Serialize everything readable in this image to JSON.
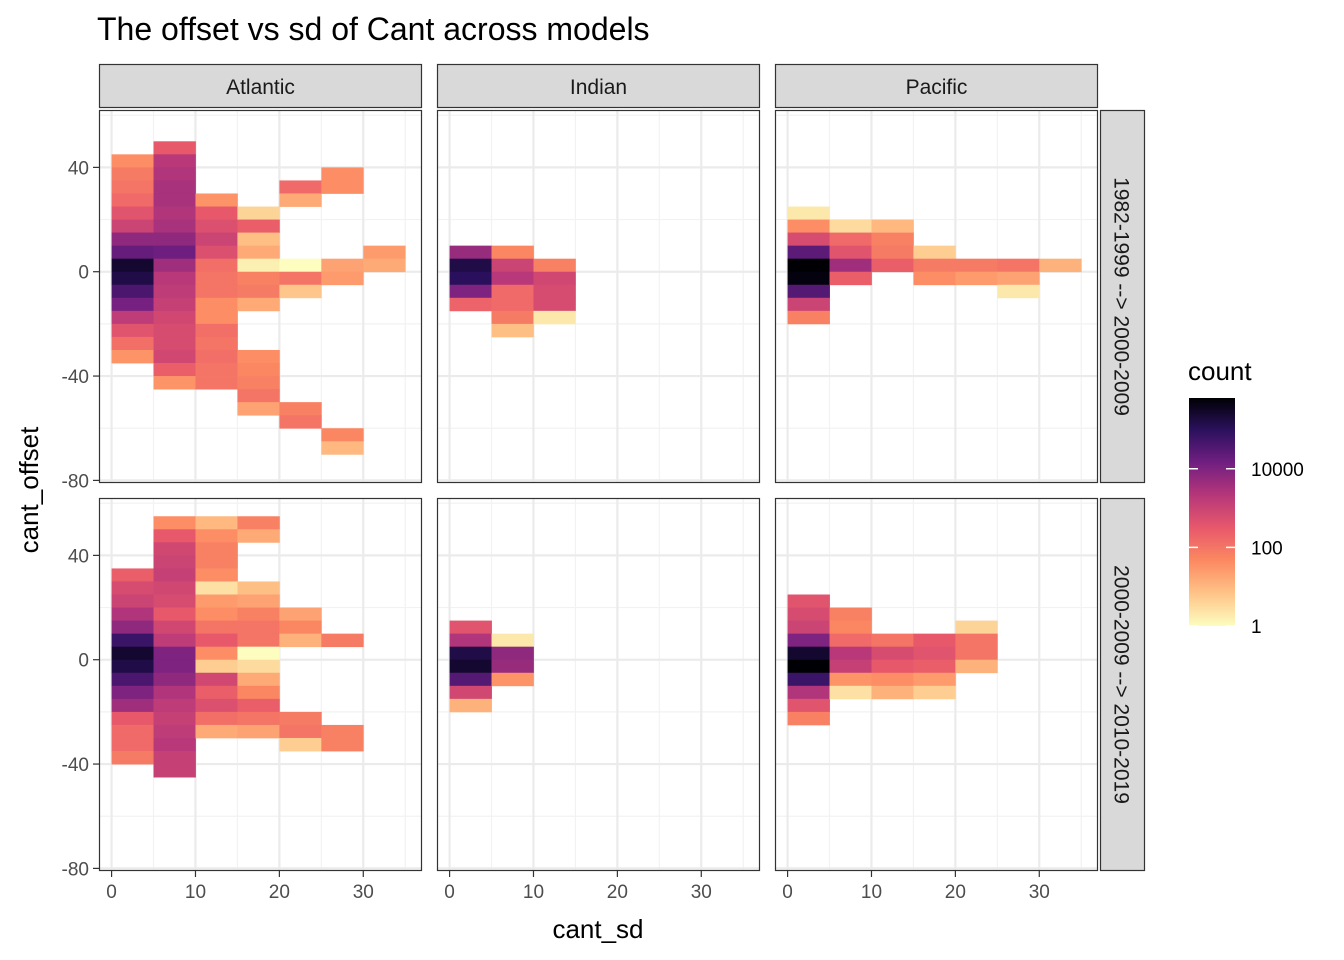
{
  "chart_data": {
    "type": "heatmap",
    "title": "The offset vs sd of Cant across models",
    "xlabel": "cant_sd",
    "ylabel": "cant_offset",
    "xlim": [
      -1.5,
      37
    ],
    "ylim": [
      -81,
      62
    ],
    "x_ticks": [
      0,
      10,
      20,
      30
    ],
    "y_ticks": [
      -80,
      -40,
      0,
      40
    ],
    "x_tick_labels": [
      "0",
      "10",
      "20",
      "30"
    ],
    "y_tick_labels": [
      "-80",
      "-40",
      "0",
      "40"
    ],
    "bin_width_x": 5,
    "bin_width_y": 5,
    "facet_columns": [
      "Atlantic",
      "Indian",
      "Pacific"
    ],
    "facet_rows": [
      "1982-1999 --> 2000-2009",
      "2000-2009 --> 2010-2019"
    ],
    "legend": {
      "title": "count",
      "scale": "log10",
      "breaks": [
        1,
        100,
        10000
      ],
      "break_labels": [
        "1",
        "100",
        "10000"
      ],
      "max_log10": 5.8,
      "palette": [
        "#fcfdbf",
        "#fec488",
        "#fc8961",
        "#e8596b",
        "#b73779",
        "#721f81",
        "#2c115f",
        "#000004"
      ],
      "position": "right"
    },
    "grid": true,
    "panels": [
      {
        "row": 0,
        "col": 0,
        "ocean": "Atlantic",
        "period": "1982-1999 --> 2000-2009",
        "cells": [
          [
            0,
            40,
            1.6
          ],
          [
            0,
            35,
            1.9
          ],
          [
            0,
            30,
            2.0
          ],
          [
            0,
            25,
            2.2
          ],
          [
            0,
            20,
            2.6
          ],
          [
            0,
            15,
            3.0
          ],
          [
            0,
            10,
            3.8
          ],
          [
            0,
            5,
            4.3
          ],
          [
            0,
            0,
            5.4
          ],
          [
            0,
            -5,
            5.2
          ],
          [
            0,
            -10,
            4.6
          ],
          [
            0,
            -15,
            4.1
          ],
          [
            0,
            -20,
            3.2
          ],
          [
            0,
            -25,
            2.6
          ],
          [
            0,
            -30,
            2.1
          ],
          [
            0,
            -35,
            1.5
          ],
          [
            5,
            45,
            2.5
          ],
          [
            5,
            40,
            3.3
          ],
          [
            5,
            35,
            3.4
          ],
          [
            5,
            30,
            3.5
          ],
          [
            5,
            25,
            3.5
          ],
          [
            5,
            20,
            3.4
          ],
          [
            5,
            15,
            3.5
          ],
          [
            5,
            10,
            3.8
          ],
          [
            5,
            5,
            4.2
          ],
          [
            5,
            0,
            3.6
          ],
          [
            5,
            -5,
            3.3
          ],
          [
            5,
            -10,
            3.2
          ],
          [
            5,
            -15,
            3.1
          ],
          [
            5,
            -20,
            2.9
          ],
          [
            5,
            -25,
            2.8
          ],
          [
            5,
            -30,
            2.8
          ],
          [
            5,
            -35,
            2.9
          ],
          [
            5,
            -40,
            2.4
          ],
          [
            5,
            -45,
            1.5
          ],
          [
            10,
            25,
            1.5
          ],
          [
            10,
            20,
            2.5
          ],
          [
            10,
            15,
            2.7
          ],
          [
            10,
            10,
            3.0
          ],
          [
            10,
            5,
            2.7
          ],
          [
            10,
            0,
            2.1
          ],
          [
            10,
            -5,
            2.0
          ],
          [
            10,
            -10,
            2.0
          ],
          [
            10,
            -15,
            1.6
          ],
          [
            10,
            -20,
            1.6
          ],
          [
            10,
            -25,
            2.1
          ],
          [
            10,
            -30,
            2.0
          ],
          [
            10,
            -35,
            2.1
          ],
          [
            10,
            -40,
            2.0
          ],
          [
            10,
            -45,
            2.0
          ],
          [
            15,
            20,
            0.6
          ],
          [
            15,
            15,
            2.4
          ],
          [
            15,
            10,
            0.9
          ],
          [
            15,
            5,
            1.2
          ],
          [
            15,
            0,
            0.2
          ],
          [
            15,
            -5,
            1.8
          ],
          [
            15,
            -10,
            1.9
          ],
          [
            15,
            -15,
            1.2
          ],
          [
            15,
            -35,
            1.6
          ],
          [
            15,
            -40,
            1.7
          ],
          [
            15,
            -45,
            1.8
          ],
          [
            15,
            -50,
            2.0
          ],
          [
            15,
            -55,
            1.3
          ],
          [
            20,
            30,
            2.2
          ],
          [
            20,
            25,
            1.2
          ],
          [
            20,
            0,
            0.0
          ],
          [
            20,
            -5,
            2.0
          ],
          [
            20,
            -10,
            0.8
          ],
          [
            20,
            -55,
            1.8
          ],
          [
            20,
            -60,
            2.0
          ],
          [
            25,
            35,
            1.6
          ],
          [
            25,
            30,
            1.6
          ],
          [
            25,
            0,
            1.3
          ],
          [
            25,
            -5,
            1.4
          ],
          [
            25,
            -65,
            1.7
          ],
          [
            25,
            -70,
            1.0
          ],
          [
            30,
            5,
            1.4
          ],
          [
            30,
            0,
            1.2
          ]
        ]
      },
      {
        "row": 0,
        "col": 1,
        "ocean": "Indian",
        "period": "1982-1999 --> 2000-2009",
        "cells": [
          [
            0,
            5,
            3.7
          ],
          [
            0,
            0,
            5.2
          ],
          [
            0,
            -5,
            5.0
          ],
          [
            0,
            -10,
            4.0
          ],
          [
            0,
            -15,
            2.3
          ],
          [
            5,
            5,
            1.7
          ],
          [
            5,
            0,
            3.0
          ],
          [
            5,
            -5,
            3.3
          ],
          [
            5,
            -10,
            2.2
          ],
          [
            5,
            -15,
            2.2
          ],
          [
            5,
            -20,
            1.9
          ],
          [
            5,
            -25,
            0.9
          ],
          [
            10,
            0,
            1.8
          ],
          [
            10,
            -5,
            2.9
          ],
          [
            10,
            -10,
            2.8
          ],
          [
            10,
            -15,
            2.8
          ],
          [
            10,
            -20,
            0.3
          ]
        ]
      },
      {
        "row": 0,
        "col": 2,
        "ocean": "Pacific",
        "period": "1982-1999 --> 2000-2009",
        "cells": [
          [
            0,
            20,
            0.3
          ],
          [
            0,
            15,
            1.6
          ],
          [
            0,
            10,
            2.8
          ],
          [
            0,
            5,
            4.4
          ],
          [
            0,
            0,
            5.8
          ],
          [
            0,
            -5,
            5.7
          ],
          [
            0,
            -10,
            4.5
          ],
          [
            0,
            -15,
            3.0
          ],
          [
            0,
            -20,
            1.8
          ],
          [
            5,
            15,
            0.5
          ],
          [
            5,
            10,
            2.2
          ],
          [
            5,
            5,
            2.6
          ],
          [
            5,
            0,
            3.6
          ],
          [
            5,
            -5,
            2.4
          ],
          [
            10,
            15,
            1.0
          ],
          [
            10,
            10,
            1.8
          ],
          [
            10,
            5,
            1.9
          ],
          [
            10,
            0,
            2.4
          ],
          [
            15,
            5,
            0.7
          ],
          [
            15,
            0,
            1.9
          ],
          [
            15,
            -5,
            1.6
          ],
          [
            20,
            0,
            1.9
          ],
          [
            20,
            -5,
            1.4
          ],
          [
            25,
            0,
            2.0
          ],
          [
            25,
            -5,
            1.3
          ],
          [
            25,
            -10,
            0.3
          ],
          [
            30,
            0,
            1.1
          ]
        ]
      },
      {
        "row": 1,
        "col": 0,
        "ocean": "Atlantic",
        "period": "2000-2009 --> 2010-2019",
        "cells": [
          [
            0,
            30,
            2.4
          ],
          [
            0,
            25,
            2.8
          ],
          [
            0,
            20,
            3.0
          ],
          [
            0,
            15,
            3.4
          ],
          [
            0,
            10,
            3.8
          ],
          [
            0,
            5,
            4.8
          ],
          [
            0,
            0,
            5.4
          ],
          [
            0,
            -5,
            5.2
          ],
          [
            0,
            -10,
            4.6
          ],
          [
            0,
            -15,
            4.0
          ],
          [
            0,
            -20,
            3.6
          ],
          [
            0,
            -25,
            2.5
          ],
          [
            0,
            -30,
            2.2
          ],
          [
            0,
            -35,
            2.2
          ],
          [
            0,
            -40,
            1.9
          ],
          [
            5,
            50,
            1.6
          ],
          [
            5,
            45,
            2.5
          ],
          [
            5,
            40,
            2.9
          ],
          [
            5,
            35,
            3.0
          ],
          [
            5,
            30,
            3.1
          ],
          [
            5,
            25,
            2.9
          ],
          [
            5,
            20,
            2.8
          ],
          [
            5,
            15,
            2.5
          ],
          [
            5,
            10,
            2.9
          ],
          [
            5,
            5,
            3.2
          ],
          [
            5,
            0,
            4.0
          ],
          [
            5,
            -5,
            4.0
          ],
          [
            5,
            -10,
            3.8
          ],
          [
            5,
            -15,
            3.4
          ],
          [
            5,
            -20,
            3.2
          ],
          [
            5,
            -25,
            3.1
          ],
          [
            5,
            -30,
            3.2
          ],
          [
            5,
            -35,
            3.3
          ],
          [
            5,
            -40,
            3.1
          ],
          [
            5,
            -45,
            3.1
          ],
          [
            10,
            50,
            1.0
          ],
          [
            10,
            45,
            1.6
          ],
          [
            10,
            40,
            1.8
          ],
          [
            10,
            35,
            1.8
          ],
          [
            10,
            30,
            1.6
          ],
          [
            10,
            25,
            0.4
          ],
          [
            10,
            20,
            1.4
          ],
          [
            10,
            15,
            1.6
          ],
          [
            10,
            10,
            2.0
          ],
          [
            10,
            5,
            2.5
          ],
          [
            10,
            0,
            1.6
          ],
          [
            10,
            -5,
            0.7
          ],
          [
            10,
            -10,
            2.9
          ],
          [
            10,
            -15,
            2.4
          ],
          [
            10,
            -20,
            2.7
          ],
          [
            10,
            -25,
            2.1
          ],
          [
            10,
            -30,
            1.2
          ],
          [
            15,
            50,
            1.8
          ],
          [
            15,
            45,
            1.2
          ],
          [
            15,
            25,
            0.9
          ],
          [
            15,
            20,
            1.3
          ],
          [
            15,
            15,
            1.8
          ],
          [
            15,
            10,
            2.0
          ],
          [
            15,
            5,
            2.0
          ],
          [
            15,
            0,
            0.0
          ],
          [
            15,
            -5,
            0.5
          ],
          [
            15,
            -10,
            1.2
          ],
          [
            15,
            -15,
            1.7
          ],
          [
            15,
            -20,
            2.4
          ],
          [
            15,
            -25,
            2.0
          ],
          [
            15,
            -30,
            1.3
          ],
          [
            20,
            15,
            1.3
          ],
          [
            20,
            10,
            1.7
          ],
          [
            20,
            5,
            1.1
          ],
          [
            20,
            -25,
            1.9
          ],
          [
            20,
            -30,
            2.0
          ],
          [
            20,
            -35,
            0.7
          ],
          [
            25,
            5,
            1.9
          ],
          [
            25,
            -30,
            1.8
          ],
          [
            25,
            -35,
            1.8
          ]
        ]
      },
      {
        "row": 1,
        "col": 1,
        "ocean": "Indian",
        "period": "2000-2009 --> 2010-2019",
        "cells": [
          [
            0,
            10,
            2.6
          ],
          [
            0,
            5,
            3.4
          ],
          [
            0,
            0,
            5.2
          ],
          [
            0,
            -5,
            5.4
          ],
          [
            0,
            -10,
            4.5
          ],
          [
            0,
            -15,
            2.9
          ],
          [
            0,
            -20,
            1.1
          ],
          [
            5,
            5,
            0.3
          ],
          [
            5,
            0,
            3.8
          ],
          [
            5,
            -5,
            3.7
          ],
          [
            5,
            -10,
            1.5
          ]
        ]
      },
      {
        "row": 1,
        "col": 2,
        "ocean": "Pacific",
        "period": "2000-2009 --> 2010-2019",
        "cells": [
          [
            0,
            20,
            2.6
          ],
          [
            0,
            15,
            2.8
          ],
          [
            0,
            10,
            3.0
          ],
          [
            0,
            5,
            4.0
          ],
          [
            0,
            0,
            5.4
          ],
          [
            0,
            -5,
            5.8
          ],
          [
            0,
            -10,
            4.8
          ],
          [
            0,
            -15,
            3.4
          ],
          [
            0,
            -20,
            2.6
          ],
          [
            0,
            -25,
            1.8
          ],
          [
            5,
            15,
            1.8
          ],
          [
            5,
            10,
            1.7
          ],
          [
            5,
            5,
            2.2
          ],
          [
            5,
            0,
            3.3
          ],
          [
            5,
            -5,
            3.1
          ],
          [
            5,
            -10,
            1.5
          ],
          [
            5,
            -15,
            0.4
          ],
          [
            10,
            5,
            2.0
          ],
          [
            10,
            0,
            2.8
          ],
          [
            10,
            -5,
            2.5
          ],
          [
            10,
            -10,
            1.6
          ],
          [
            10,
            -15,
            1.1
          ],
          [
            15,
            5,
            2.5
          ],
          [
            15,
            0,
            2.6
          ],
          [
            15,
            -5,
            2.4
          ],
          [
            15,
            -10,
            1.4
          ],
          [
            15,
            -15,
            0.7
          ],
          [
            20,
            10,
            0.6
          ],
          [
            20,
            5,
            2.0
          ],
          [
            20,
            0,
            2.0
          ],
          [
            20,
            -5,
            1.1
          ]
        ]
      }
    ]
  }
}
